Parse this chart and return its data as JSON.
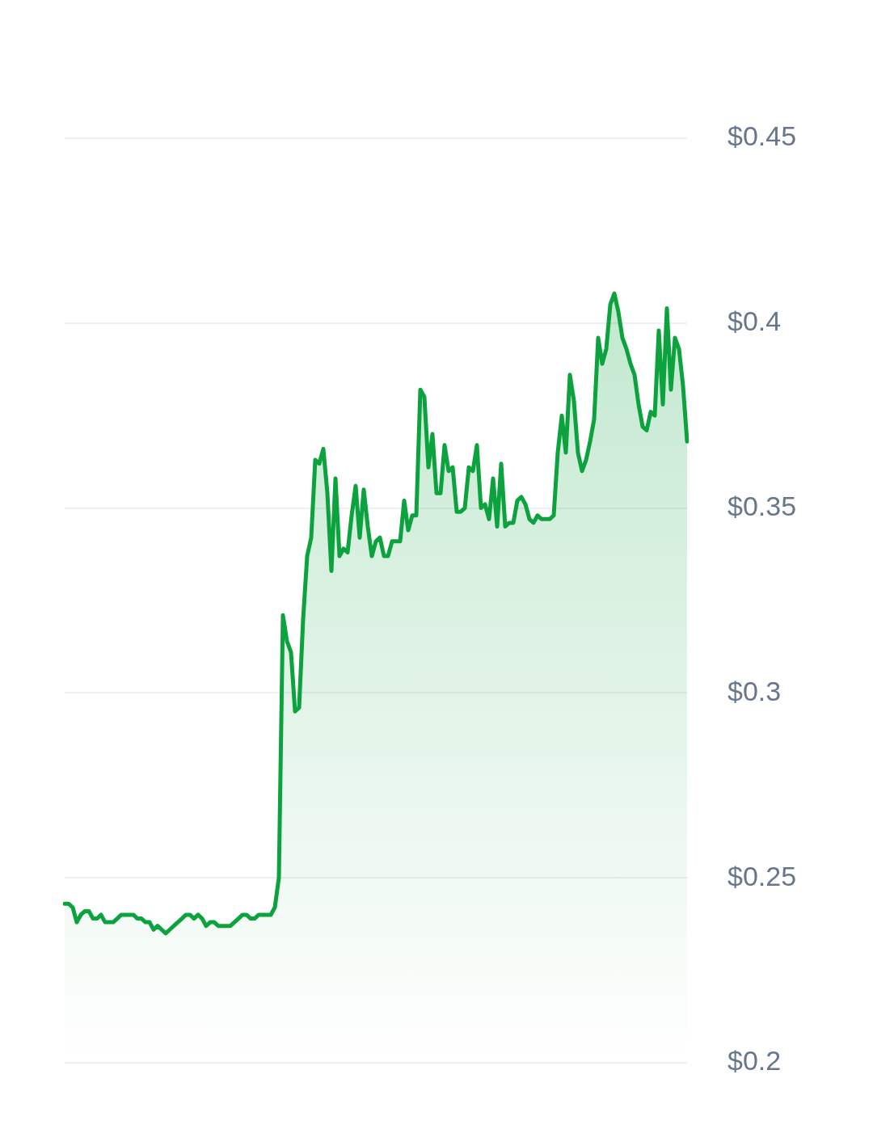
{
  "chart_data": {
    "type": "area",
    "categories": [
      null,
      null,
      null,
      null,
      null,
      null,
      null,
      null,
      null,
      null,
      null,
      null,
      null,
      null,
      null,
      null,
      null,
      null,
      null,
      null,
      null,
      null,
      null,
      null,
      null,
      null,
      null,
      null,
      null,
      null,
      null,
      null,
      null,
      null,
      null,
      null,
      null,
      null,
      null,
      null,
      null,
      null,
      null,
      null,
      null,
      null,
      null,
      null,
      null,
      null,
      null,
      null,
      null,
      null,
      null,
      null,
      null,
      null,
      null,
      null,
      null,
      null,
      null,
      null,
      null,
      null,
      null,
      null,
      null,
      null,
      null,
      null,
      null,
      null,
      null,
      null,
      null,
      null,
      null,
      null,
      null,
      null,
      null,
      null,
      null,
      null,
      null,
      null,
      null,
      null,
      null,
      null,
      null,
      null,
      null,
      null,
      null,
      null,
      null,
      null,
      null,
      null,
      null,
      null,
      null,
      null,
      null,
      null,
      null,
      null,
      null,
      null,
      null,
      null,
      null,
      null,
      null,
      null,
      null,
      null,
      null,
      null,
      null,
      null,
      null,
      null,
      null,
      null,
      null,
      null,
      null,
      null,
      null,
      null,
      null,
      null,
      null,
      null,
      null,
      null,
      null,
      null,
      null,
      null,
      null,
      null,
      null,
      null,
      null,
      null,
      null,
      null,
      null,
      null,
      null
    ],
    "series": [
      {
        "color": "#0ca33f",
        "values": [
          0.243,
          0.243,
          0.242,
          0.238,
          0.24,
          0.241,
          0.241,
          0.239,
          0.239,
          0.24,
          0.238,
          0.238,
          0.238,
          0.239,
          0.24,
          0.24,
          0.24,
          0.24,
          0.239,
          0.239,
          0.238,
          0.238,
          0.236,
          0.237,
          0.236,
          0.235,
          0.236,
          0.237,
          0.238,
          0.239,
          0.24,
          0.24,
          0.239,
          0.24,
          0.239,
          0.237,
          0.238,
          0.238,
          0.237,
          0.237,
          0.237,
          0.237,
          0.238,
          0.239,
          0.24,
          0.24,
          0.239,
          0.239,
          0.24,
          0.24,
          0.24,
          0.24,
          0.242,
          0.25,
          0.321,
          0.314,
          0.311,
          0.295,
          0.296,
          0.32,
          0.337,
          0.342,
          0.363,
          0.362,
          0.366,
          0.354,
          0.333,
          0.358,
          0.337,
          0.339,
          0.338,
          0.348,
          0.356,
          0.342,
          0.355,
          0.345,
          0.337,
          0.341,
          0.342,
          0.337,
          0.337,
          0.341,
          0.341,
          0.341,
          0.352,
          0.344,
          0.348,
          0.348,
          0.382,
          0.38,
          0.361,
          0.37,
          0.354,
          0.354,
          0.367,
          0.36,
          0.361,
          0.349,
          0.349,
          0.35,
          0.361,
          0.36,
          0.367,
          0.35,
          0.351,
          0.347,
          0.358,
          0.345,
          0.362,
          0.345,
          0.346,
          0.346,
          0.352,
          0.353,
          0.351,
          0.347,
          0.346,
          0.348,
          0.347,
          0.347,
          0.347,
          0.348,
          0.365,
          0.375,
          0.365,
          0.386,
          0.379,
          0.365,
          0.36,
          0.363,
          0.368,
          0.374,
          0.396,
          0.389,
          0.393,
          0.405,
          0.408,
          0.403,
          0.396,
          0.393,
          0.389,
          0.386,
          0.378,
          0.372,
          0.371,
          0.376,
          0.375,
          0.398,
          0.378,
          0.404,
          0.382,
          0.396,
          0.393,
          0.383,
          0.368
        ]
      }
    ],
    "ylim": [
      0.2,
      0.45
    ],
    "yticks": [
      {
        "value": 0.2,
        "label": "$0.2"
      },
      {
        "value": 0.25,
        "label": "$0.25"
      },
      {
        "value": 0.3,
        "label": "$0.3"
      },
      {
        "value": 0.35,
        "label": "$0.35"
      },
      {
        "value": 0.4,
        "label": "$0.4"
      },
      {
        "value": 0.45,
        "label": "$0.45"
      }
    ],
    "grid": "y",
    "tick_labels": "y"
  }
}
